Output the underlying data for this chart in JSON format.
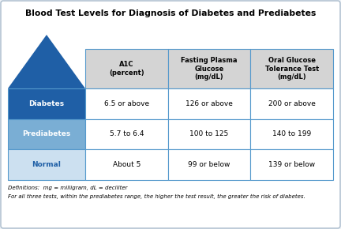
{
  "title": "Blood Test Levels for Diagnosis of Diabetes and Prediabetes",
  "col_headers": [
    "A1C\n(percent)",
    "Fasting Plasma\nGlucose\n(mg/dL)",
    "Oral Glucose\nTolerance Test\n(mg/dL)"
  ],
  "row_labels": [
    "Diabetes",
    "Prediabetes",
    "Normal"
  ],
  "row_label_colors": [
    "#1f5fa6",
    "#7aaed4",
    "#cce0f0"
  ],
  "row_label_text_colors": [
    "#ffffff",
    "#ffffff",
    "#1f5fa6"
  ],
  "cell_data": [
    [
      "6.5 or above",
      "126 or above",
      "200 or above"
    ],
    [
      "5.7 to 6.4",
      "100 to 125",
      "140 to 199"
    ],
    [
      "About 5",
      "99 or below",
      "139 or below"
    ]
  ],
  "header_bg_color": "#d4d4d4",
  "cell_bg_color": "#ffffff",
  "border_color": "#5599cc",
  "arrow_color": "#1f5fa6",
  "footnote_line1": "Definitions:  mg = milligram, dL = deciliter",
  "footnote_line2": "For all three tests, within the prediabetes range, the higher the test result, the greater the risk of diabetes.",
  "bg_color": "#eef3f8",
  "outer_border_color": "#aabbcc",
  "fig_width": 4.32,
  "fig_height": 2.9,
  "dpi": 100
}
